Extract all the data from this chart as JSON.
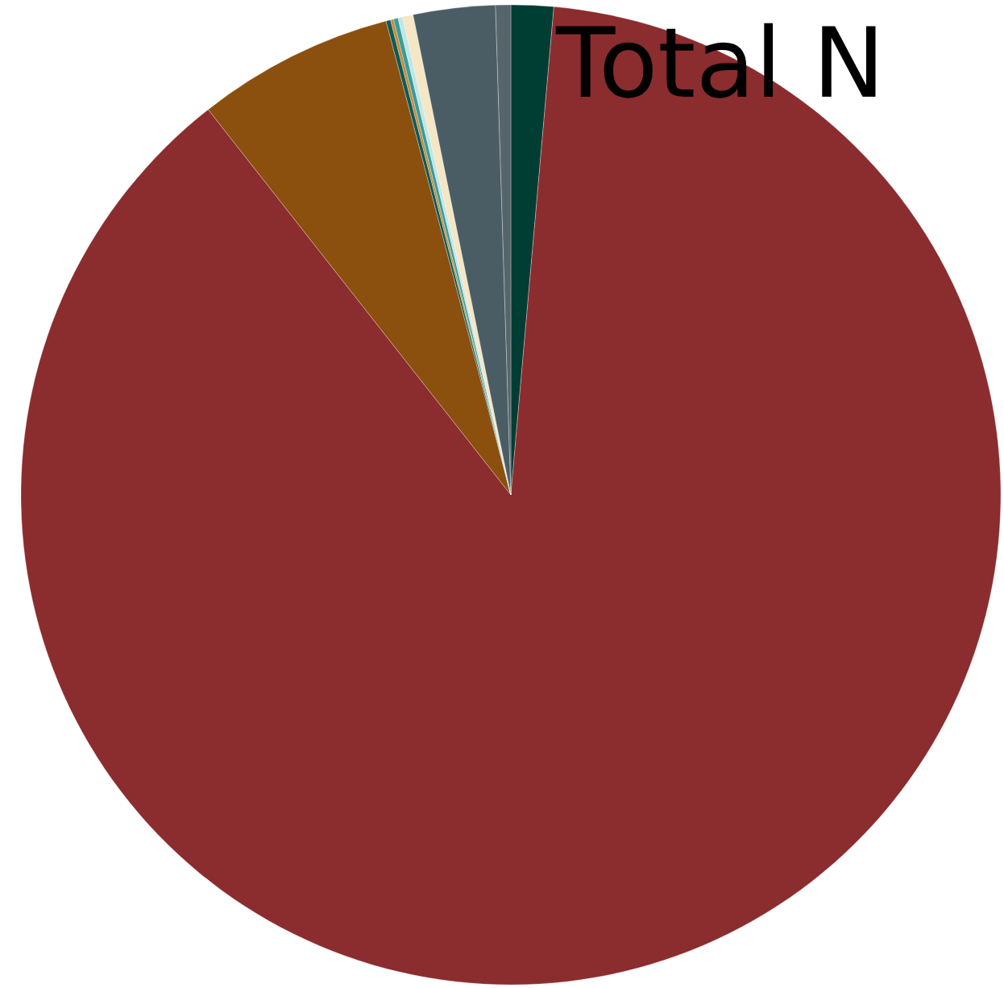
{
  "chart_data": {
    "type": "pie",
    "title": "Total N",
    "categories": [
      null,
      null,
      null,
      null,
      null,
      null,
      null,
      null,
      null,
      null
    ],
    "values": [
      1.4,
      88.0,
      6.5,
      0.15,
      0.1,
      0.15,
      0.15,
      0.35,
      2.7,
      0.5
    ],
    "colors": [
      "#003d33",
      "#8b2c2e",
      "#8b4f0e",
      "#0f5a55",
      "#c9893a",
      "#3a9c96",
      "#bfe6e8",
      "#f5e6c4",
      "#4b5d64",
      "#56656b"
    ]
  }
}
